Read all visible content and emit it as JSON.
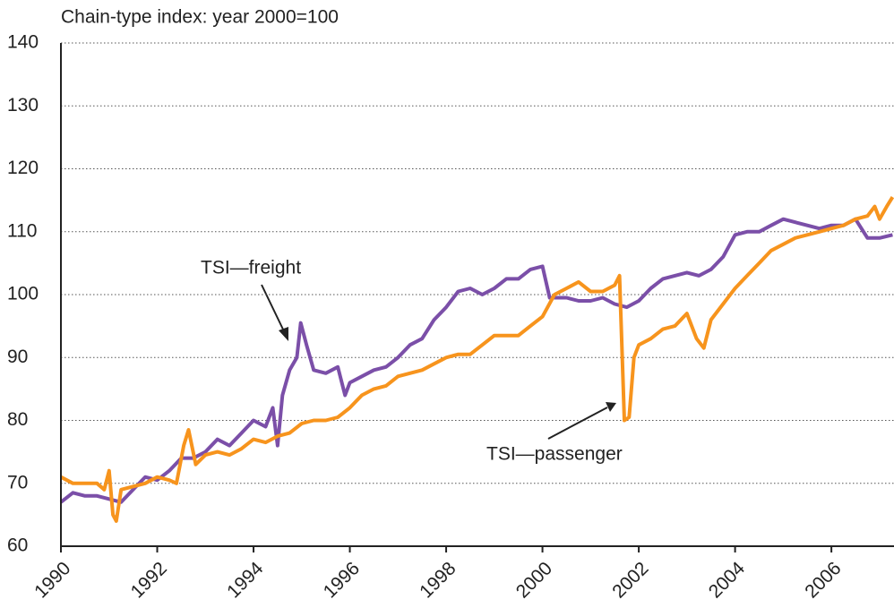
{
  "chart_data": {
    "type": "line",
    "title": "Chain-type index: year 2000=100",
    "xlim": [
      1990,
      2007.3
    ],
    "xticks": [
      1990,
      1992,
      1994,
      1996,
      1998,
      2000,
      2002,
      2004,
      2006
    ],
    "ylim": [
      60,
      140
    ],
    "yticks": [
      60,
      70,
      80,
      90,
      100,
      110,
      120,
      130,
      140
    ],
    "grid": true,
    "series": [
      {
        "name": "TSI—freight",
        "color": "#7b4fa8",
        "x": [
          1990,
          1990.25,
          1990.5,
          1990.75,
          1991,
          1991.25,
          1991.5,
          1991.75,
          1992,
          1992.25,
          1992.5,
          1992.75,
          1993,
          1993.25,
          1993.5,
          1993.75,
          1994,
          1994.25,
          1994.4,
          1994.5,
          1994.6,
          1994.75,
          1994.9,
          1994.98,
          1995.1,
          1995.25,
          1995.5,
          1995.75,
          1995.9,
          1996,
          1996.25,
          1996.5,
          1996.75,
          1997,
          1997.25,
          1997.5,
          1997.75,
          1998,
          1998.25,
          1998.5,
          1998.75,
          1999,
          1999.25,
          1999.5,
          1999.75,
          2000,
          2000.15,
          2000.5,
          2000.75,
          2001,
          2001.25,
          2001.5,
          2001.75,
          2002,
          2002.25,
          2002.5,
          2002.75,
          2003,
          2003.25,
          2003.5,
          2003.75,
          2004,
          2004.25,
          2004.5,
          2004.75,
          2005,
          2005.25,
          2005.5,
          2005.75,
          2006,
          2006.25,
          2006.5,
          2006.75,
          2007,
          2007.27
        ],
        "values": [
          67,
          68.5,
          68,
          68,
          67.5,
          67,
          69,
          71,
          70.5,
          72,
          74,
          74,
          75,
          77,
          76,
          78,
          80,
          79,
          82,
          76,
          84,
          88,
          90,
          95.5,
          92,
          88,
          87.5,
          88.5,
          84,
          86,
          87,
          88,
          88.5,
          90,
          92,
          93,
          96,
          98,
          100.5,
          101,
          100,
          101,
          102.5,
          102.5,
          104,
          104.5,
          99.5,
          99.5,
          99,
          99,
          99.5,
          98.5,
          98,
          99,
          101,
          102.5,
          103,
          103.5,
          103,
          104,
          106,
          109.5,
          110,
          110,
          111,
          112,
          111.5,
          111,
          110.5,
          111,
          111,
          112,
          109,
          109,
          109.5
        ]
      },
      {
        "name": "TSI—passenger",
        "color": "#f7941d",
        "x": [
          1990,
          1990.25,
          1990.5,
          1990.75,
          1990.9,
          1991,
          1991.08,
          1991.15,
          1991.25,
          1991.5,
          1991.75,
          1992,
          1992.25,
          1992.4,
          1992.55,
          1992.65,
          1992.8,
          1993,
          1993.25,
          1993.5,
          1993.75,
          1994,
          1994.25,
          1994.5,
          1994.75,
          1995,
          1995.25,
          1995.5,
          1995.75,
          1996,
          1996.25,
          1996.5,
          1996.75,
          1997,
          1997.25,
          1997.5,
          1997.75,
          1998,
          1998.25,
          1998.5,
          1998.75,
          1999,
          1999.25,
          1999.5,
          1999.75,
          2000,
          2000.25,
          2000.5,
          2000.75,
          2001,
          2001.25,
          2001.5,
          2001.6,
          2001.7,
          2001.8,
          2001.9,
          2002,
          2002.25,
          2002.5,
          2002.75,
          2003,
          2003.2,
          2003.35,
          2003.5,
          2003.75,
          2004,
          2004.25,
          2004.5,
          2004.75,
          2005,
          2005.25,
          2005.5,
          2005.75,
          2006,
          2006.25,
          2006.5,
          2006.75,
          2006.9,
          2007,
          2007.15,
          2007.27
        ],
        "values": [
          71,
          70,
          70,
          70,
          69,
          72,
          65,
          64,
          69,
          69.5,
          70,
          71,
          70.5,
          70,
          76,
          78.5,
          73,
          74.5,
          75,
          74.5,
          75.5,
          77,
          76.5,
          77.5,
          78,
          79.5,
          80,
          80,
          80.5,
          82,
          84,
          85,
          85.5,
          87,
          87.5,
          88,
          89,
          90,
          90.5,
          90.5,
          92,
          93.5,
          93.5,
          93.5,
          95,
          96.5,
          100,
          101,
          102,
          100.5,
          100.5,
          101.5,
          103,
          80,
          80.5,
          90,
          92,
          93,
          94.5,
          95,
          97,
          93,
          91.5,
          96,
          98.5,
          101,
          103,
          105,
          107,
          108,
          109,
          109.5,
          110,
          110.5,
          111,
          112,
          112.5,
          114,
          112,
          114,
          115.5
        ]
      }
    ]
  }
}
